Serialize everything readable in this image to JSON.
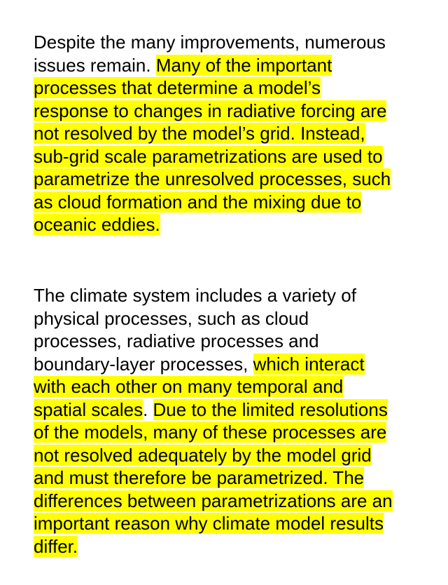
{
  "highlight_color": "#ffff00",
  "paragraphs": [
    {
      "lines": [
        [
          {
            "text": "Despite the many improvements, numerous",
            "highlight": false
          }
        ],
        [
          {
            "text": "issues remain. ",
            "highlight": false
          },
          {
            "text": "Many of the important",
            "highlight": true
          }
        ],
        [
          {
            "text": "processes that determine a model’s",
            "highlight": true
          }
        ],
        [
          {
            "text": "response to changes in radiative forcing are",
            "highlight": true
          }
        ],
        [
          {
            "text": "not resolved by the model’s grid. Instead,",
            "highlight": true
          }
        ],
        [
          {
            "text": "sub-grid scale parametrizations are used to",
            "highlight": true
          }
        ],
        [
          {
            "text": "parametrize the unresolved processes, such",
            "highlight": true
          }
        ],
        [
          {
            "text": "as cloud formation and the mixing due to",
            "highlight": true
          }
        ],
        [
          {
            "text": "oceanic eddies.",
            "highlight": true
          }
        ]
      ]
    },
    {
      "lines": [
        [
          {
            "text": "The climate system includes a variety of",
            "highlight": false
          }
        ],
        [
          {
            "text": "physical processes, such as cloud",
            "highlight": false
          }
        ],
        [
          {
            "text": "processes, radiative processes and",
            "highlight": false
          }
        ],
        [
          {
            "text": "boundary-layer processes, ",
            "highlight": false
          },
          {
            "text": "which interact",
            "highlight": true
          }
        ],
        [
          {
            "text": "with each other on many temporal and",
            "highlight": true
          }
        ],
        [
          {
            "text": "spatial scales",
            "highlight": true
          },
          {
            "text": ". ",
            "highlight": false
          },
          {
            "text": "Due to the limited resolutions",
            "highlight": true
          }
        ],
        [
          {
            "text": "of the models, many of these processes are",
            "highlight": true
          }
        ],
        [
          {
            "text": "not resolved adequately by the model grid",
            "highlight": true
          }
        ],
        [
          {
            "text": "and must therefore be parametrized. The",
            "highlight": true
          }
        ],
        [
          {
            "text": "differences between parametrizations are an",
            "highlight": true
          }
        ],
        [
          {
            "text": "important reason why climate model results",
            "highlight": true
          }
        ],
        [
          {
            "text": "differ.",
            "highlight": true
          }
        ]
      ]
    }
  ]
}
